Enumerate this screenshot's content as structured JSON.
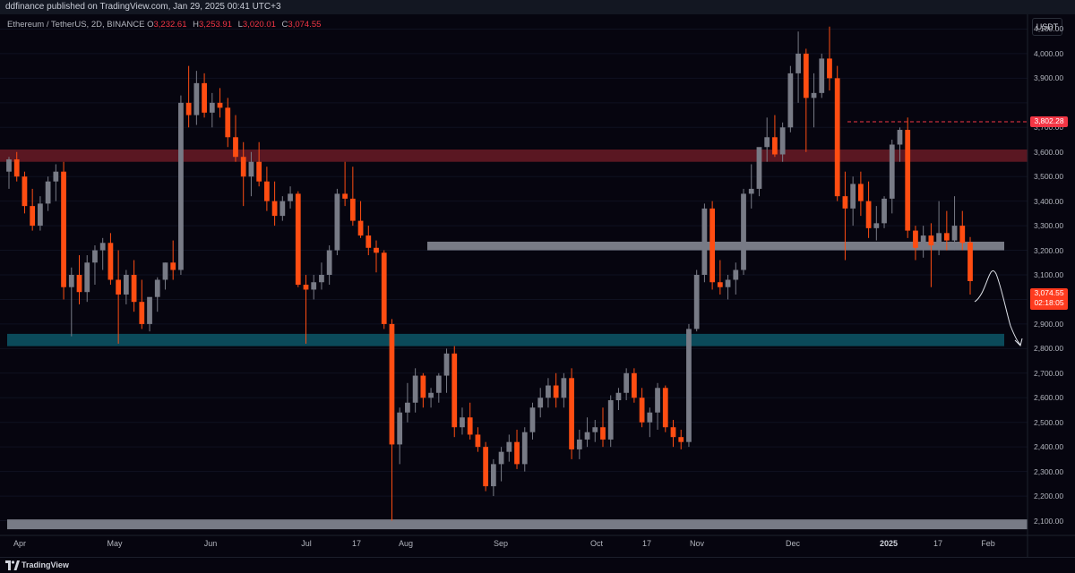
{
  "publish_bar": {
    "text": "ddfinance published on TradingView.com, Jan 29, 2025 00:41 UTC+3"
  },
  "symbol": {
    "name": "Ethereum / TetherUS, 2D, BINANCE",
    "open_label": "O",
    "open": "3,232.61",
    "high_label": "H",
    "high": "3,253.91",
    "low_label": "L",
    "low": "3,020.01",
    "close_label": "C",
    "close": "3,074.55"
  },
  "currency_button": "USDT",
  "price_axis": {
    "labels": [
      "4,100.00",
      "4,000.00",
      "3,900.00",
      "3,700.00",
      "3,600.00",
      "3,500.00",
      "3,400.00",
      "3,300.00",
      "3,200.00",
      "3,100.00",
      "2,900.00",
      "2,800.00",
      "2,700.00",
      "2,600.00",
      "2,500.00",
      "2,400.00",
      "2,300.00",
      "2,200.00",
      "2,100.00"
    ],
    "ref_badge": "3,802.28",
    "current_price": "3,074.55",
    "countdown": "02:18:05"
  },
  "time_axis": {
    "labels": [
      {
        "t": "Apr",
        "bold": false
      },
      {
        "t": "May",
        "bold": false
      },
      {
        "t": "Jun",
        "bold": false
      },
      {
        "t": "Jul",
        "bold": false
      },
      {
        "t": "17",
        "bold": false
      },
      {
        "t": "Aug",
        "bold": false
      },
      {
        "t": "Sep",
        "bold": false
      },
      {
        "t": "Oct",
        "bold": false
      },
      {
        "t": "17",
        "bold": false
      },
      {
        "t": "Nov",
        "bold": false
      },
      {
        "t": "Dec",
        "bold": false
      },
      {
        "t": "2025",
        "bold": true
      },
      {
        "t": "17",
        "bold": false
      },
      {
        "t": "Feb",
        "bold": false
      }
    ]
  },
  "colors": {
    "up": "#787b86",
    "down": "#ff4d12",
    "zone_resistance": "#5a1722",
    "zone_support": "#0b4a5a",
    "zone_pivot": "#787b86"
  },
  "zones": [
    {
      "name": "resistance-zone",
      "low": 3560,
      "high": 3610,
      "color": "zone_resistance"
    },
    {
      "name": "pivot-zone",
      "low": 3200,
      "high": 3235,
      "color": "zone_pivot"
    },
    {
      "name": "support-zone",
      "low": 2810,
      "high": 2860,
      "color": "zone_support"
    },
    {
      "name": "bottom-zone",
      "low": 2065,
      "high": 2105,
      "color": "zone_pivot"
    }
  ],
  "chart_data": {
    "type": "candlestick",
    "y_range": [
      2040,
      4160
    ],
    "ohlc": [
      [
        3520,
        3580,
        3450,
        3570
      ],
      [
        3570,
        3600,
        3480,
        3500
      ],
      [
        3500,
        3520,
        3350,
        3380
      ],
      [
        3380,
        3450,
        3280,
        3300
      ],
      [
        3300,
        3420,
        3280,
        3390
      ],
      [
        3390,
        3500,
        3360,
        3480
      ],
      [
        3480,
        3550,
        3400,
        3520
      ],
      [
        3520,
        3560,
        3000,
        3050
      ],
      [
        3050,
        3130,
        2850,
        3100
      ],
      [
        3100,
        3180,
        2980,
        3030
      ],
      [
        3030,
        3180,
        2990,
        3150
      ],
      [
        3150,
        3220,
        3060,
        3200
      ],
      [
        3200,
        3250,
        3120,
        3230
      ],
      [
        3230,
        3270,
        3060,
        3080
      ],
      [
        3080,
        3200,
        2820,
        3020
      ],
      [
        3020,
        3120,
        2980,
        3100
      ],
      [
        3100,
        3160,
        2950,
        2990
      ],
      [
        2990,
        3080,
        2880,
        2900
      ],
      [
        2900,
        3000,
        2870,
        3010
      ],
      [
        3010,
        3090,
        2950,
        3080
      ],
      [
        3080,
        3150,
        3040,
        3150
      ],
      [
        3150,
        3240,
        3080,
        3120
      ],
      [
        3120,
        3830,
        3100,
        3800
      ],
      [
        3800,
        3950,
        3700,
        3750
      ],
      [
        3750,
        3930,
        3710,
        3880
      ],
      [
        3880,
        3920,
        3740,
        3760
      ],
      [
        3760,
        3840,
        3700,
        3800
      ],
      [
        3800,
        3860,
        3740,
        3780
      ],
      [
        3780,
        3820,
        3620,
        3660
      ],
      [
        3660,
        3750,
        3560,
        3580
      ],
      [
        3580,
        3640,
        3380,
        3500
      ],
      [
        3500,
        3600,
        3420,
        3560
      ],
      [
        3560,
        3640,
        3460,
        3480
      ],
      [
        3480,
        3540,
        3360,
        3400
      ],
      [
        3400,
        3480,
        3300,
        3340
      ],
      [
        3340,
        3420,
        3320,
        3400
      ],
      [
        3400,
        3460,
        3370,
        3430
      ],
      [
        3430,
        3440,
        3050,
        3060
      ],
      [
        3060,
        3100,
        2820,
        3040
      ],
      [
        3040,
        3100,
        3000,
        3070
      ],
      [
        3070,
        3150,
        3040,
        3100
      ],
      [
        3100,
        3220,
        3060,
        3200
      ],
      [
        3200,
        3450,
        3180,
        3430
      ],
      [
        3430,
        3560,
        3380,
        3410
      ],
      [
        3410,
        3540,
        3300,
        3320
      ],
      [
        3320,
        3400,
        3250,
        3260
      ],
      [
        3260,
        3300,
        3180,
        3210
      ],
      [
        3210,
        3240,
        3110,
        3190
      ],
      [
        3190,
        3200,
        2880,
        2900
      ],
      [
        2900,
        2920,
        2100,
        2410
      ],
      [
        2410,
        2560,
        2330,
        2540
      ],
      [
        2540,
        2660,
        2500,
        2580
      ],
      [
        2580,
        2720,
        2540,
        2690
      ],
      [
        2690,
        2700,
        2560,
        2600
      ],
      [
        2600,
        2640,
        2560,
        2620
      ],
      [
        2620,
        2700,
        2580,
        2690
      ],
      [
        2690,
        2800,
        2620,
        2780
      ],
      [
        2780,
        2810,
        2440,
        2480
      ],
      [
        2480,
        2560,
        2450,
        2520
      ],
      [
        2520,
        2580,
        2430,
        2450
      ],
      [
        2450,
        2480,
        2380,
        2400
      ],
      [
        2400,
        2420,
        2220,
        2240
      ],
      [
        2240,
        2350,
        2200,
        2330
      ],
      [
        2330,
        2400,
        2260,
        2380
      ],
      [
        2380,
        2450,
        2340,
        2420
      ],
      [
        2420,
        2470,
        2310,
        2330
      ],
      [
        2330,
        2480,
        2300,
        2460
      ],
      [
        2460,
        2580,
        2430,
        2560
      ],
      [
        2560,
        2640,
        2520,
        2600
      ],
      [
        2600,
        2680,
        2560,
        2650
      ],
      [
        2650,
        2700,
        2560,
        2600
      ],
      [
        2600,
        2700,
        2560,
        2680
      ],
      [
        2680,
        2720,
        2350,
        2390
      ],
      [
        2390,
        2470,
        2350,
        2430
      ],
      [
        2430,
        2520,
        2400,
        2460
      ],
      [
        2460,
        2510,
        2420,
        2480
      ],
      [
        2480,
        2560,
        2400,
        2430
      ],
      [
        2430,
        2610,
        2400,
        2590
      ],
      [
        2590,
        2640,
        2550,
        2620
      ],
      [
        2620,
        2720,
        2590,
        2700
      ],
      [
        2700,
        2720,
        2580,
        2600
      ],
      [
        2600,
        2640,
        2480,
        2500
      ],
      [
        2500,
        2560,
        2440,
        2540
      ],
      [
        2540,
        2660,
        2470,
        2640
      ],
      [
        2640,
        2650,
        2460,
        2480
      ],
      [
        2480,
        2510,
        2400,
        2440
      ],
      [
        2440,
        2470,
        2390,
        2420
      ],
      [
        2420,
        2900,
        2400,
        2880
      ],
      [
        2880,
        3120,
        2870,
        3100
      ],
      [
        3100,
        3390,
        3070,
        3370
      ],
      [
        3370,
        3400,
        3040,
        3070
      ],
      [
        3070,
        3160,
        3020,
        3050
      ],
      [
        3050,
        3100,
        3000,
        3080
      ],
      [
        3080,
        3150,
        3020,
        3120
      ],
      [
        3120,
        3450,
        3100,
        3430
      ],
      [
        3430,
        3550,
        3370,
        3450
      ],
      [
        3450,
        3600,
        3420,
        3620
      ],
      [
        3620,
        3740,
        3560,
        3660
      ],
      [
        3660,
        3750,
        3580,
        3590
      ],
      [
        3590,
        3720,
        3560,
        3700
      ],
      [
        3700,
        3950,
        3680,
        3920
      ],
      [
        3920,
        4090,
        3800,
        4000
      ],
      [
        4000,
        4020,
        3600,
        3820
      ],
      [
        3820,
        3920,
        3700,
        3840
      ],
      [
        3840,
        4000,
        3820,
        3980
      ],
      [
        3980,
        4110,
        3850,
        3900
      ],
      [
        3900,
        3950,
        3400,
        3420
      ],
      [
        3420,
        3520,
        3160,
        3370
      ],
      [
        3370,
        3500,
        3300,
        3470
      ],
      [
        3470,
        3520,
        3340,
        3400
      ],
      [
        3400,
        3480,
        3250,
        3290
      ],
      [
        3290,
        3380,
        3240,
        3310
      ],
      [
        3310,
        3420,
        3290,
        3410
      ],
      [
        3410,
        3650,
        3350,
        3630
      ],
      [
        3630,
        3700,
        3560,
        3690
      ],
      [
        3690,
        3740,
        3250,
        3280
      ],
      [
        3280,
        3300,
        3160,
        3210
      ],
      [
        3210,
        3300,
        3170,
        3260
      ],
      [
        3260,
        3310,
        3050,
        3220
      ],
      [
        3220,
        3400,
        3180,
        3270
      ],
      [
        3270,
        3360,
        3200,
        3240
      ],
      [
        3240,
        3420,
        3200,
        3300
      ],
      [
        3300,
        3360,
        3200,
        3230
      ],
      [
        3232.61,
        3253.91,
        3020.01,
        3074.55
      ]
    ]
  }
}
